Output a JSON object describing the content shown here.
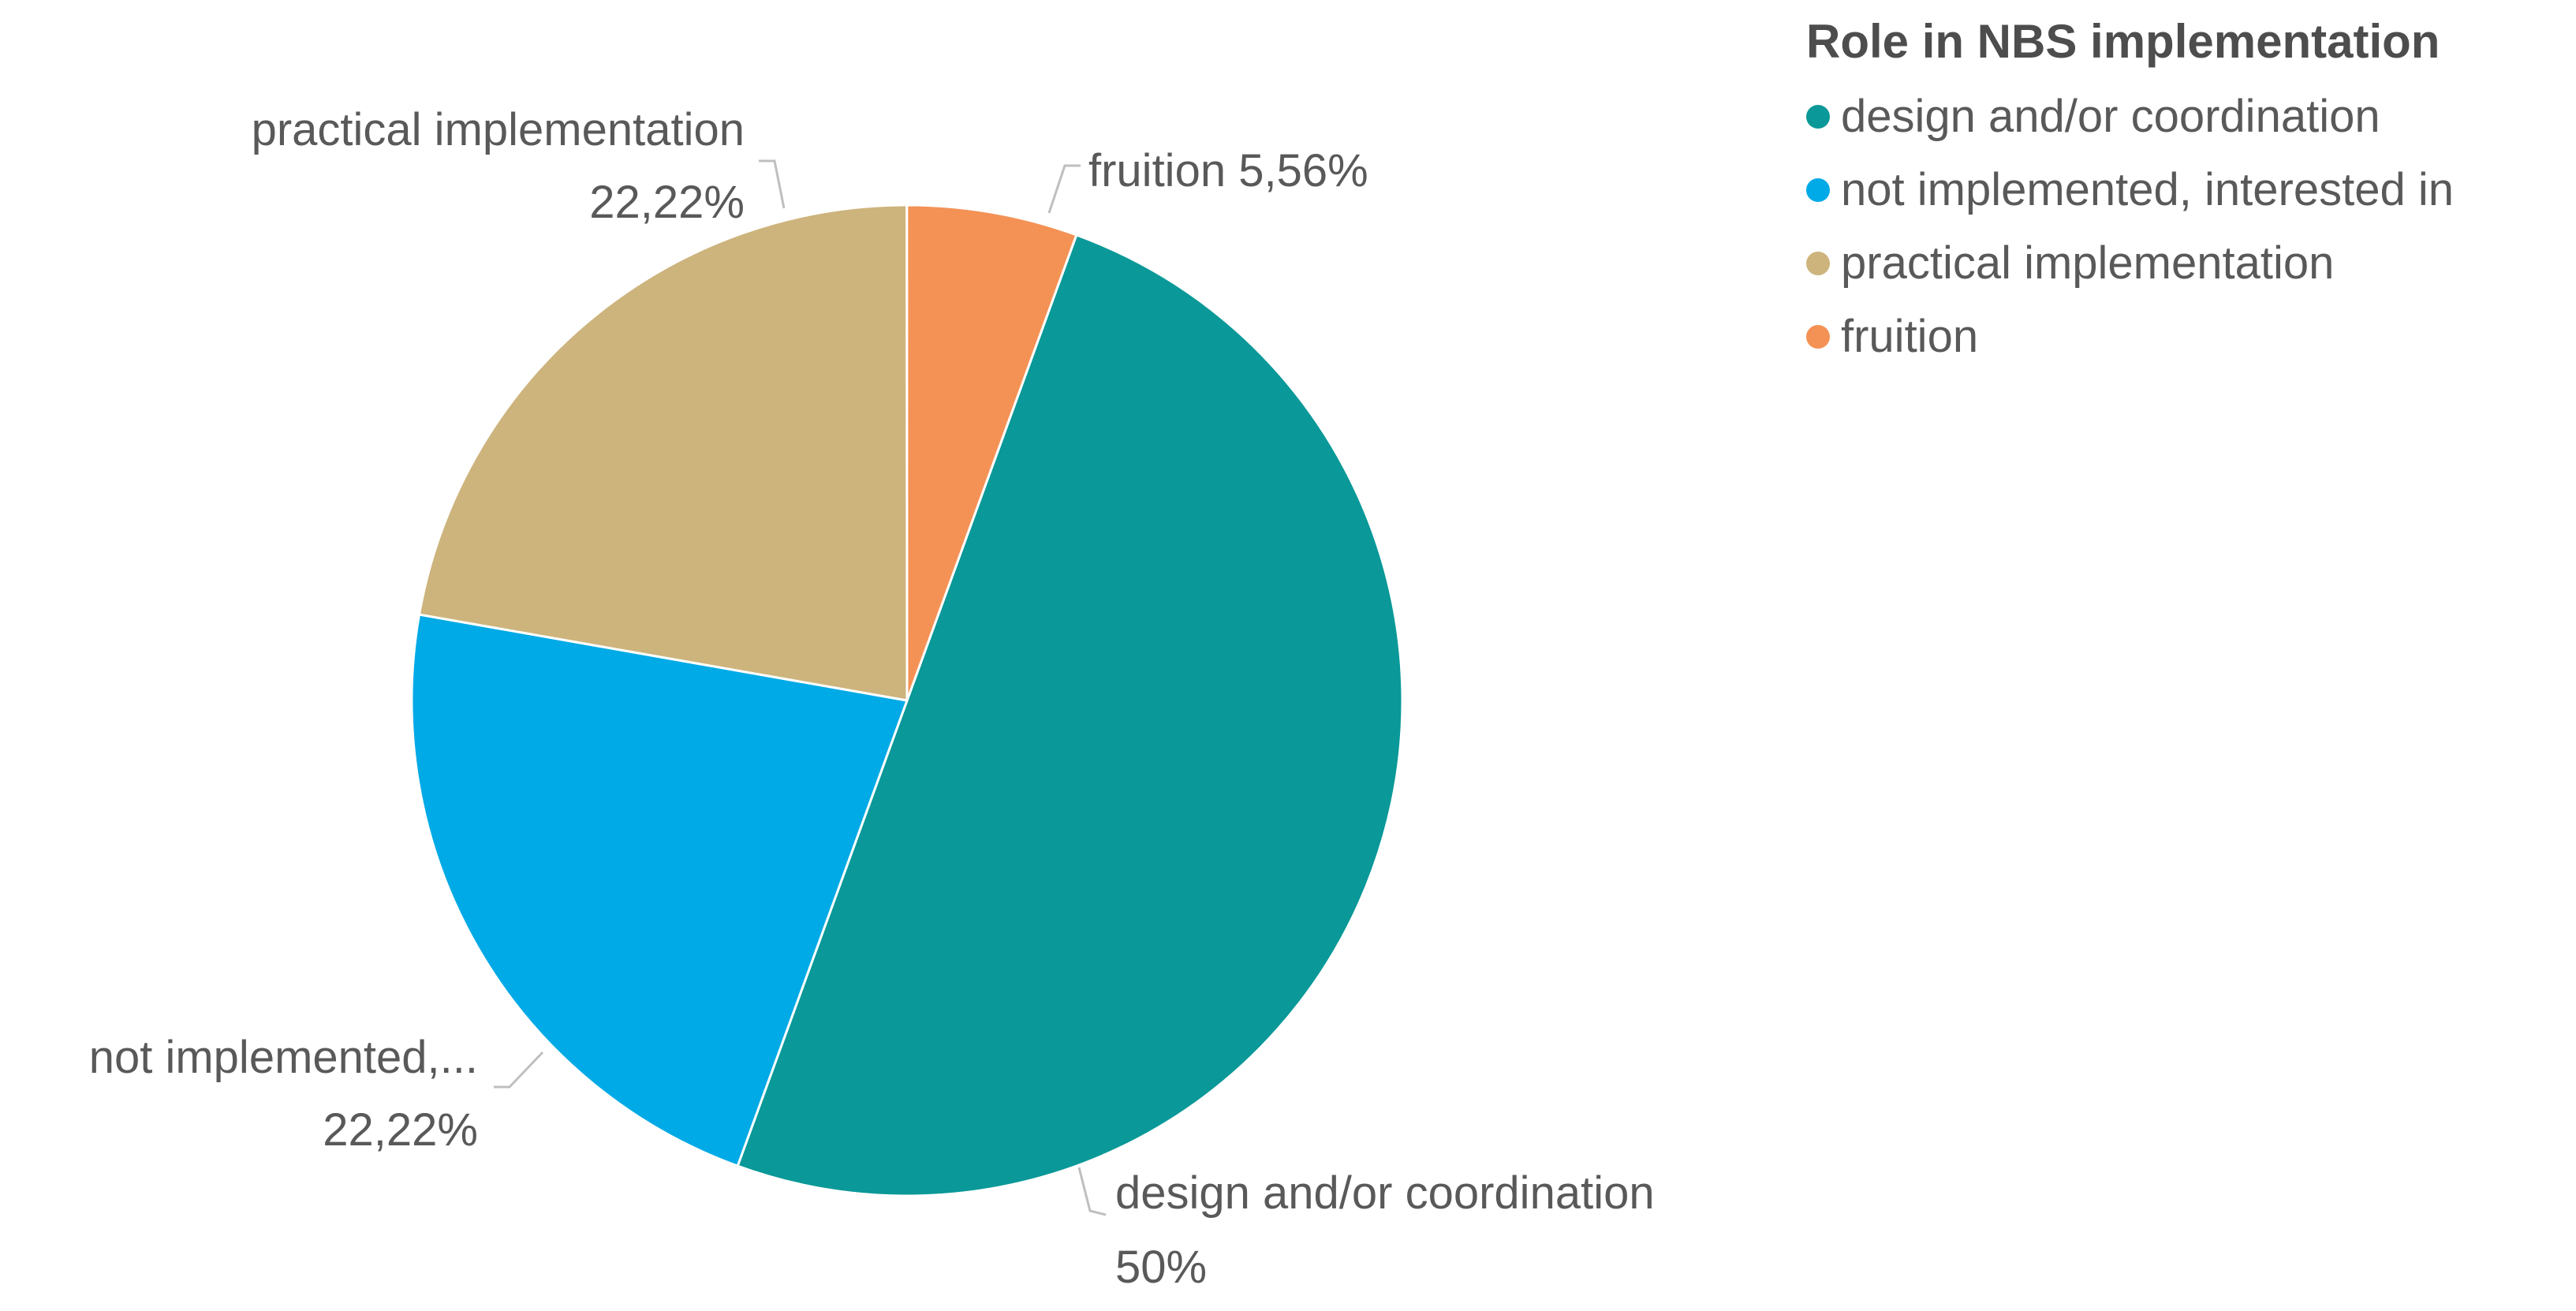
{
  "chart_data": {
    "type": "pie",
    "legend_title": "Role in NBS implementation",
    "legend_position": "top-right",
    "slices": [
      {
        "name": "design and/or coordination",
        "value": 50,
        "color": "#0a9898",
        "data_label_name": "design and/or coordination",
        "data_label_value": "50%"
      },
      {
        "name": "not implemented, interested in",
        "value": 22.22,
        "color": "#00aae6",
        "data_label_name": "not implemented,...",
        "data_label_value": "22,22%"
      },
      {
        "name": "practical implementation",
        "value": 22.22,
        "color": "#cdb47d",
        "data_label_name": "practical implementation",
        "data_label_value": "22,22%"
      },
      {
        "name": "fruition",
        "value": 5.56,
        "color": "#f49255",
        "data_label_name": "fruition 5,56%",
        "data_label_value": ""
      }
    ]
  }
}
